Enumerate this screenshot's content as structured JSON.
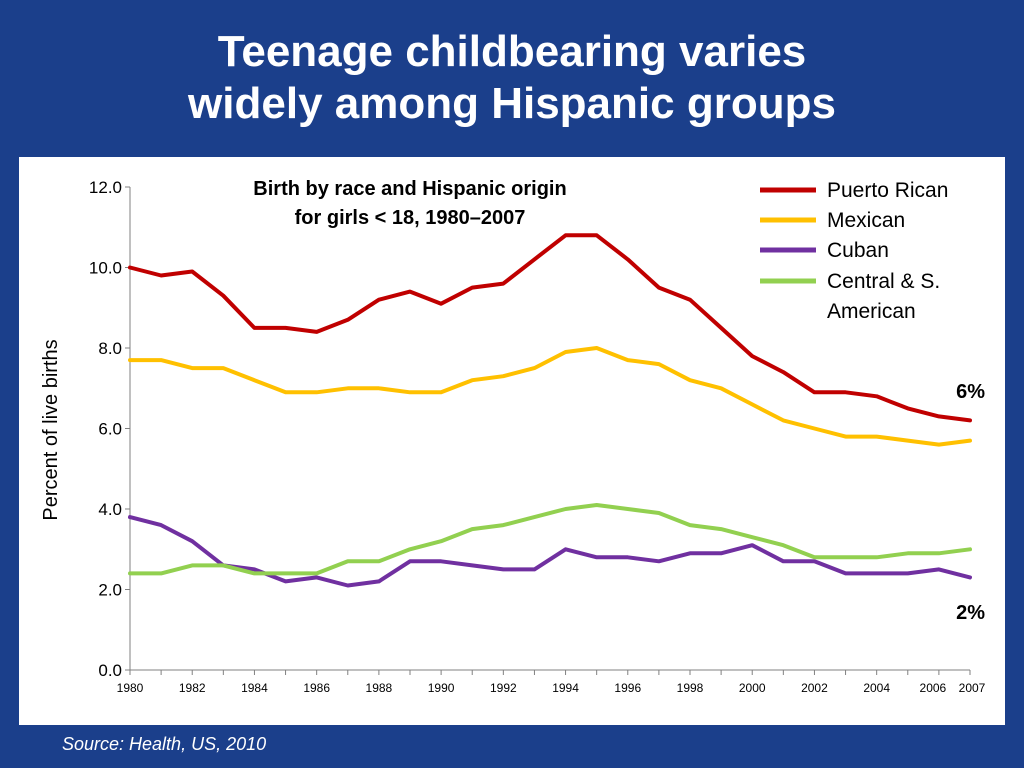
{
  "slide": {
    "title_line1": "Teenage childbearing varies",
    "title_line2": "widely among Hispanic groups",
    "source": "Source: Health, US, 2010",
    "background_color": "#1b3f8b"
  },
  "chart_data": {
    "type": "line",
    "title_line1": "Birth by race and Hispanic origin",
    "title_line2": "for girls < 18, 1980–2007",
    "ylabel": "Percent of live births",
    "xlabel": "",
    "ylim": [
      0,
      12
    ],
    "y_ticks": [
      "0.0",
      "2.0",
      "4.0",
      "6.0",
      "8.0",
      "10.0",
      "12.0"
    ],
    "x_tick_labels": [
      "1980",
      "1982",
      "1984",
      "1986",
      "1988",
      "1990",
      "1992",
      "1994",
      "1996",
      "1998",
      "2000",
      "2002",
      "2004",
      "2006",
      "2007"
    ],
    "x": [
      1980,
      1981,
      1982,
      1983,
      1984,
      1985,
      1986,
      1987,
      1988,
      1989,
      1990,
      1991,
      1992,
      1993,
      1994,
      1995,
      1996,
      1997,
      1998,
      1999,
      2000,
      2001,
      2002,
      2003,
      2004,
      2005,
      2006,
      2007
    ],
    "grid": false,
    "legend_position": "top-right",
    "series": [
      {
        "name": "Puerto Rican",
        "color": "#c00000",
        "values": [
          10.0,
          9.8,
          9.9,
          9.3,
          8.5,
          8.5,
          8.4,
          8.7,
          9.2,
          9.4,
          9.1,
          9.5,
          9.6,
          10.2,
          10.8,
          10.8,
          10.2,
          9.5,
          9.2,
          8.5,
          7.8,
          7.4,
          6.9,
          6.9,
          6.8,
          6.5,
          6.3,
          6.2
        ]
      },
      {
        "name": "Mexican",
        "color": "#ffc000",
        "values": [
          7.7,
          7.7,
          7.5,
          7.5,
          7.2,
          6.9,
          6.9,
          7.0,
          7.0,
          6.9,
          6.9,
          7.2,
          7.3,
          7.5,
          7.9,
          8.0,
          7.7,
          7.6,
          7.2,
          7.0,
          6.6,
          6.2,
          6.0,
          5.8,
          5.8,
          5.7,
          5.6,
          5.7
        ]
      },
      {
        "name": "Cuban",
        "color": "#7030a0",
        "values": [
          3.8,
          3.6,
          3.2,
          2.6,
          2.5,
          2.2,
          2.3,
          2.1,
          2.2,
          2.7,
          2.7,
          2.6,
          2.5,
          2.5,
          3.0,
          2.8,
          2.8,
          2.7,
          2.9,
          2.9,
          3.1,
          2.7,
          2.7,
          2.4,
          2.4,
          2.4,
          2.5,
          2.3
        ]
      },
      {
        "name": "Central & S. American",
        "color": "#92d050",
        "values": [
          2.4,
          2.4,
          2.6,
          2.6,
          2.4,
          2.4,
          2.4,
          2.7,
          2.7,
          3.0,
          3.2,
          3.5,
          3.6,
          3.8,
          4.0,
          4.1,
          4.0,
          3.9,
          3.6,
          3.5,
          3.3,
          3.1,
          2.8,
          2.8,
          2.8,
          2.9,
          2.9,
          3.0
        ]
      }
    ],
    "legend_labels": [
      [
        "Puerto Rican"
      ],
      [
        "Mexican"
      ],
      [
        "Cuban"
      ],
      [
        "Central & S.",
        "American"
      ]
    ],
    "annotations": [
      {
        "text": "6%",
        "series": "Puerto Rican"
      },
      {
        "text": "2%",
        "series": "Cuban"
      }
    ]
  }
}
